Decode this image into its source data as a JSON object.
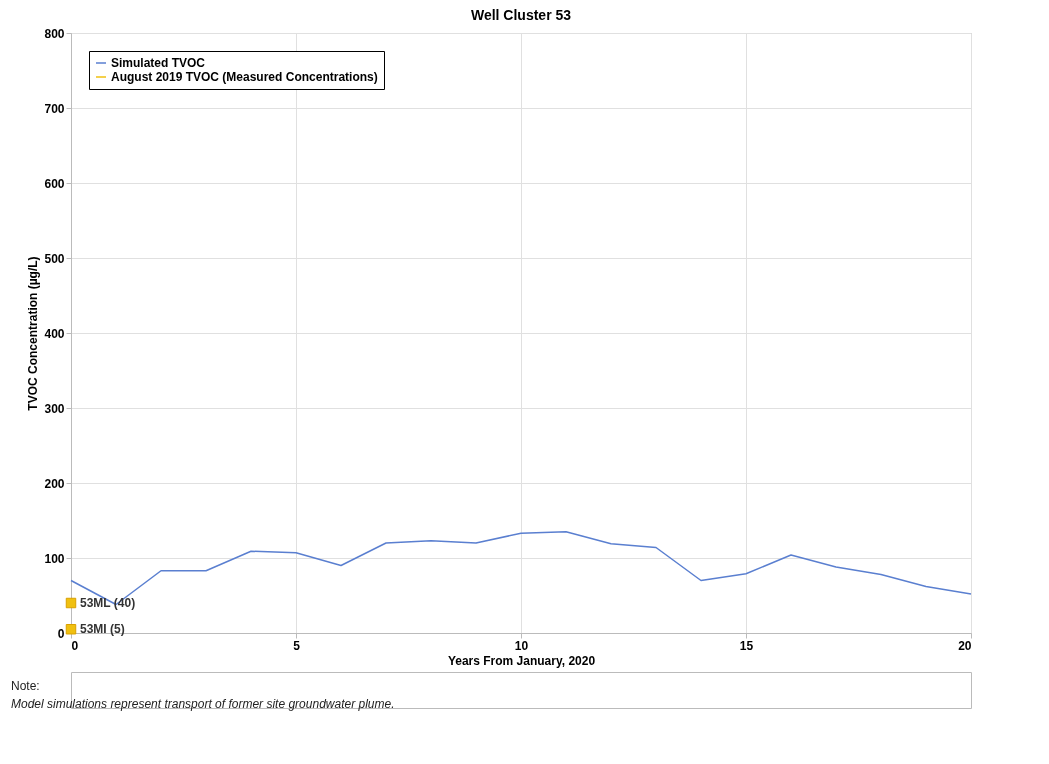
{
  "chart_data": {
    "type": "line",
    "title": "Well Cluster 53",
    "xlabel": "Years From January, 2020",
    "ylabel": "TVOC Concentration (µg/L)",
    "x": [
      0,
      1,
      2,
      3,
      4,
      5,
      6,
      7,
      8,
      9,
      10,
      11,
      12,
      13,
      14,
      15,
      16,
      17,
      18,
      19,
      20
    ],
    "series": [
      {
        "name": "Simulated TVOC",
        "color": "#5a7fd0",
        "marker": "none",
        "values": [
          70,
          38,
          83,
          83,
          109,
          107,
          90,
          120,
          123,
          120,
          133,
          135,
          119,
          114,
          70,
          79,
          104,
          88,
          78,
          62,
          52
        ]
      },
      {
        "name": "August 2019 TVOC (Measured Concentrations)",
        "type": "scatter",
        "color": "#f0c010",
        "marker": "square",
        "x": [
          0,
          0
        ],
        "values": [
          40,
          5
        ]
      }
    ],
    "xlim": [
      0,
      20
    ],
    "xticks": [
      0,
      5,
      10,
      15,
      20
    ],
    "ylim": [
      0,
      800
    ],
    "yticks": [
      0,
      100,
      200,
      300,
      400,
      500,
      600,
      700,
      800
    ],
    "grid": true,
    "legend": "top left",
    "annotations": [
      {
        "text": "53ML (40)",
        "x": 0,
        "y": 40
      },
      {
        "text": "53MI (5)",
        "x": 0,
        "y": 5
      },
      "Note:",
      "Model simulations represent transport of former site groundwater plume."
    ]
  }
}
